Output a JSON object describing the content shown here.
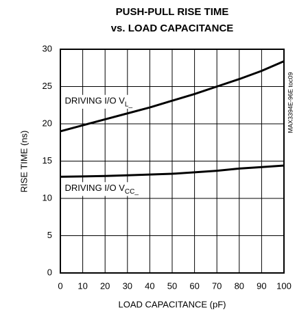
{
  "chart_data": {
    "type": "line",
    "title": [
      "PUSH-PULL RISE TIME",
      "vs. LOAD CAPACITANCE"
    ],
    "x_label": "LOAD CAPACITANCE (pF)",
    "y_label": "RISE TIME (ns)",
    "side_note": "MAX3394E-96E toc09",
    "x": [
      0,
      10,
      20,
      30,
      40,
      50,
      60,
      70,
      80,
      90,
      100
    ],
    "series": [
      {
        "color": "#000000",
        "values": [
          19,
          19.8,
          20.6,
          21.4,
          22.2,
          23.1,
          24,
          25,
          26,
          27.1,
          28.4
        ]
      },
      {
        "color": "#000000",
        "values": [
          12.9,
          12.95,
          13,
          13.1,
          13.2,
          13.3,
          13.5,
          13.7,
          14,
          14.2,
          14.4
        ]
      }
    ],
    "annotations": [
      {
        "text": "DRIVING I/O V",
        "sub": "L_",
        "x": 2,
        "y": 23
      },
      {
        "text": "DRIVING I/O V",
        "sub": "CC_",
        "x": 2,
        "y": 11.3
      }
    ],
    "xlim": [
      0,
      100
    ],
    "ylim": [
      0,
      30
    ],
    "xticks": [
      0,
      10,
      20,
      30,
      40,
      50,
      60,
      70,
      80,
      90,
      100
    ],
    "yticks": [
      0,
      5,
      10,
      15,
      20,
      25,
      30
    ],
    "grid": true
  }
}
